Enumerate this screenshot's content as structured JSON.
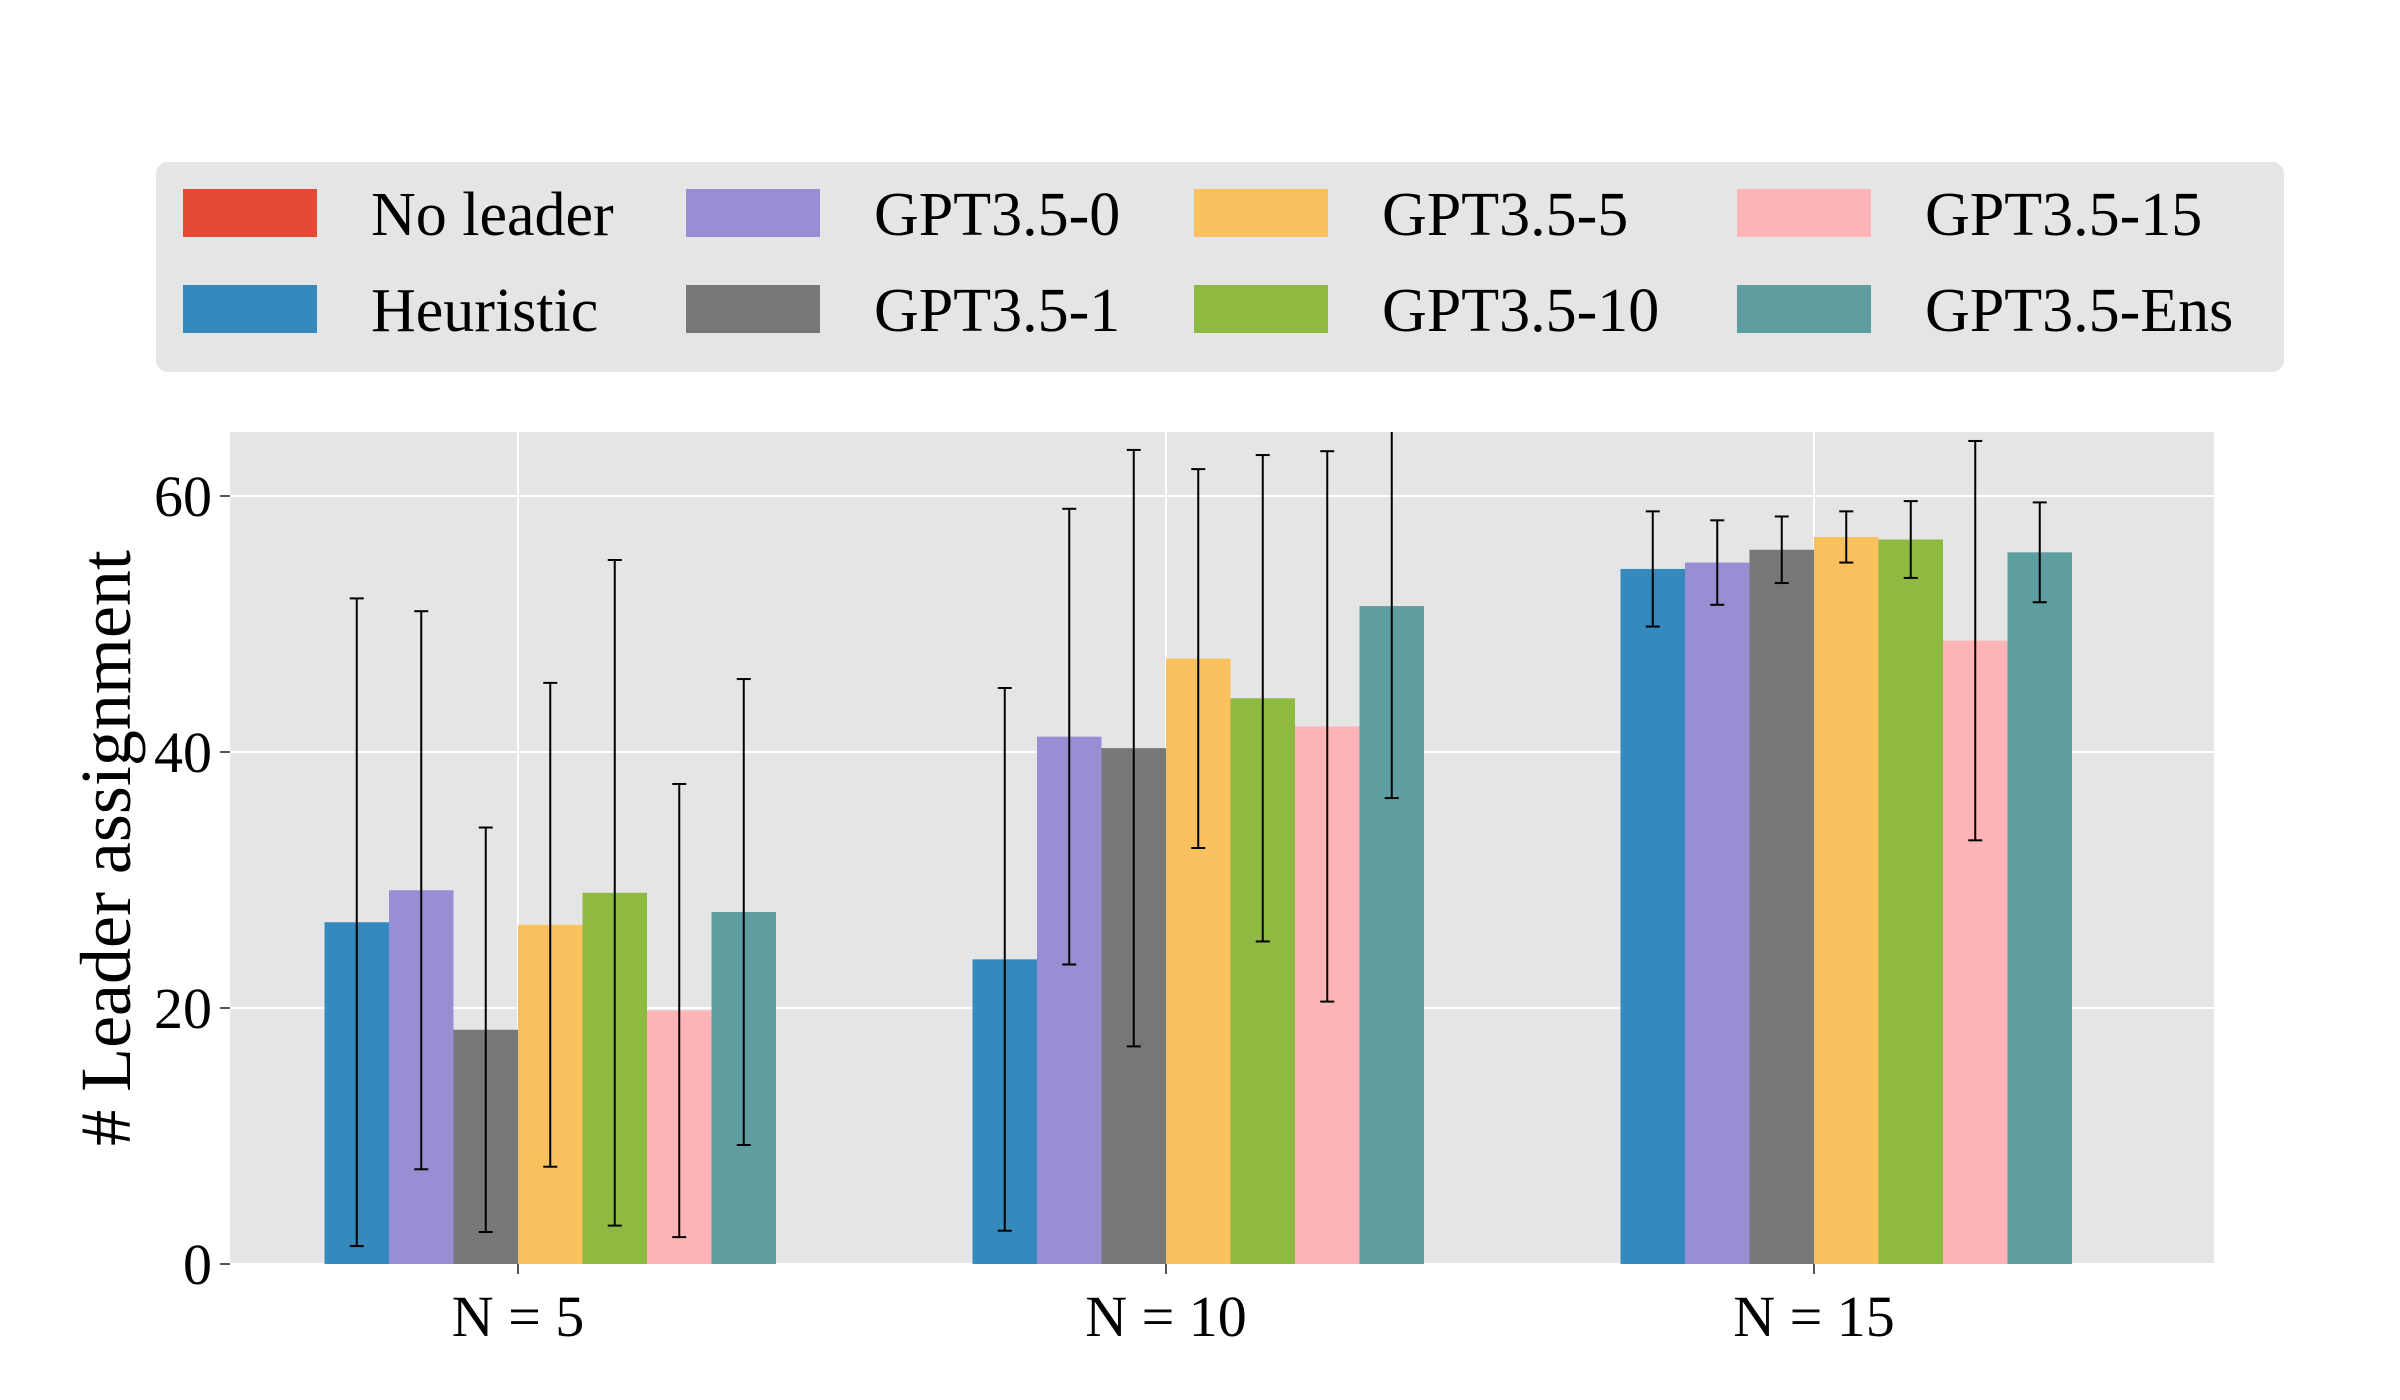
{
  "chart_data": {
    "type": "bar",
    "title": "",
    "xlabel": "",
    "ylabel": "# Leader assignment",
    "ylim": [
      0,
      65
    ],
    "yticks": [
      0,
      20,
      40,
      60
    ],
    "grid": true,
    "legend_position": "top",
    "categories": [
      "N = 5",
      "N = 10",
      "N = 15"
    ],
    "series": [
      {
        "name": "No leader",
        "color": "#E24A33",
        "values": [
          0,
          0,
          0
        ],
        "errors": [
          0,
          0,
          0
        ]
      },
      {
        "name": "Heuristic",
        "color": "#348ABD",
        "values": [
          26.7,
          23.8,
          54.3
        ],
        "errors": [
          25.3,
          21.2,
          4.5
        ]
      },
      {
        "name": "GPT3.5-0",
        "color": "#988ED5",
        "values": [
          29.2,
          41.2,
          54.8
        ],
        "errors": [
          21.8,
          17.8,
          3.3
        ]
      },
      {
        "name": "GPT3.5-1",
        "color": "#777777",
        "values": [
          18.3,
          40.3,
          55.8
        ],
        "errors": [
          15.8,
          23.3,
          2.6
        ]
      },
      {
        "name": "GPT3.5-5",
        "color": "#FBC15E",
        "values": [
          26.5,
          47.3,
          56.8
        ],
        "errors": [
          18.9,
          14.8,
          2.0
        ]
      },
      {
        "name": "GPT3.5-10",
        "color": "#8EBA42",
        "values": [
          29.0,
          44.2,
          56.6
        ],
        "errors": [
          26.0,
          19.0,
          3.0
        ]
      },
      {
        "name": "GPT3.5-15",
        "color": "#FFB5B8",
        "values": [
          19.8,
          42.0,
          48.7
        ],
        "errors": [
          17.7,
          21.5,
          15.6
        ]
      },
      {
        "name": "GPT3.5-Ens",
        "color": "#5F9EA0",
        "values": [
          27.5,
          51.4,
          55.6
        ],
        "errors": [
          18.2,
          15.0,
          3.9
        ]
      }
    ]
  }
}
